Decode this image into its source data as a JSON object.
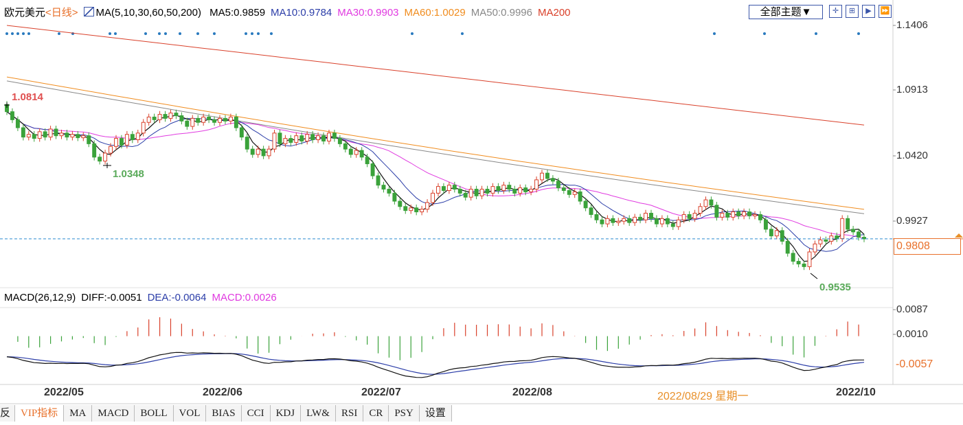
{
  "header": {
    "symbol": "欧元美元",
    "period": "<日线>",
    "ma_def": "MA(5,10,30,60,50,200)",
    "ma_values": [
      {
        "text": "MA5:0.9859",
        "color": "#000000"
      },
      {
        "text": "MA10:0.9784",
        "color": "#2b3da8"
      },
      {
        "text": "MA30:0.9903",
        "color": "#e03ae0"
      },
      {
        "text": "MA60:1.0029",
        "color": "#f08c1e"
      },
      {
        "text": "MA50:0.9996",
        "color": "#888888"
      },
      {
        "text": "MA200",
        "color": "#d9402a"
      }
    ],
    "theme_button": "全部主题▼"
  },
  "macd_header": {
    "def": "MACD(26,12,9)",
    "diff": "DIFF:-0.0051",
    "dea": "DEA:-0.0064",
    "macd": "MACD:0.0026",
    "colors": {
      "def": "#000000",
      "diff": "#000000",
      "dea": "#2b3da8",
      "macd": "#e03ae0"
    }
  },
  "price_axis": {
    "ticks": [
      "1.1406",
      "1.0913",
      "1.0420",
      "0.9927"
    ],
    "current": "0.9808"
  },
  "macd_axis": {
    "ticks": [
      "0.0087",
      "0.0010",
      "-0.0057"
    ]
  },
  "x_axis": {
    "labels": [
      "2022/05",
      "2022/06",
      "2022/07",
      "2022/08",
      "2022/10"
    ],
    "hover_date": "2022/08/29 星期一"
  },
  "annotations": {
    "high": "1.0814",
    "low1": "1.0348",
    "low2": "0.9535"
  },
  "tabs": [
    "反",
    "VIP指标",
    "MA",
    "MACD",
    "BOLL",
    "VOL",
    "BIAS",
    "CCI",
    "KDJ",
    "LW&",
    "RSI",
    "CR",
    "PSY",
    "设置"
  ],
  "active_tab": "VIP指标",
  "colors": {
    "up": "#d9402a",
    "down": "#3aa23a",
    "accent": "#e8702a"
  },
  "chart_data": {
    "type": "candlestick",
    "price_range": [
      0.9535,
      1.1406
    ],
    "candles": [
      {
        "o": 1.0814,
        "c": 1.076
      },
      {
        "o": 1.076,
        "c": 1.07
      },
      {
        "o": 1.07,
        "c": 1.064
      },
      {
        "o": 1.064,
        "c": 1.057
      },
      {
        "o": 1.057,
        "c": 1.059
      },
      {
        "o": 1.059,
        "c": 1.056
      },
      {
        "o": 1.056,
        "c": 1.061
      },
      {
        "o": 1.061,
        "c": 1.057
      },
      {
        "o": 1.057,
        "c": 1.063
      },
      {
        "o": 1.063,
        "c": 1.058
      },
      {
        "o": 1.058,
        "c": 1.06
      },
      {
        "o": 1.06,
        "c": 1.057
      },
      {
        "o": 1.057,
        "c": 1.059
      },
      {
        "o": 1.059,
        "c": 1.0565
      },
      {
        "o": 1.0565,
        "c": 1.058
      },
      {
        "o": 1.058,
        "c": 1.052
      },
      {
        "o": 1.052,
        "c": 1.042
      },
      {
        "o": 1.042,
        "c": 1.039
      },
      {
        "o": 1.039,
        "c": 1.045
      },
      {
        "o": 1.045,
        "c": 1.05
      },
      {
        "o": 1.05,
        "c": 1.056
      },
      {
        "o": 1.056,
        "c": 1.051
      },
      {
        "o": 1.051,
        "c": 1.059
      },
      {
        "o": 1.059,
        "c": 1.055
      },
      {
        "o": 1.055,
        "c": 1.06
      },
      {
        "o": 1.06,
        "c": 1.068
      },
      {
        "o": 1.068,
        "c": 1.072
      },
      {
        "o": 1.072,
        "c": 1.07
      },
      {
        "o": 1.07,
        "c": 1.074
      },
      {
        "o": 1.074,
        "c": 1.071
      },
      {
        "o": 1.071,
        "c": 1.075
      },
      {
        "o": 1.075,
        "c": 1.073
      },
      {
        "o": 1.073,
        "c": 1.069
      },
      {
        "o": 1.069,
        "c": 1.065
      },
      {
        "o": 1.065,
        "c": 1.071
      },
      {
        "o": 1.071,
        "c": 1.068
      },
      {
        "o": 1.068,
        "c": 1.072
      },
      {
        "o": 1.072,
        "c": 1.07
      },
      {
        "o": 1.07,
        "c": 1.068
      },
      {
        "o": 1.068,
        "c": 1.071
      },
      {
        "o": 1.071,
        "c": 1.069
      },
      {
        "o": 1.069,
        "c": 1.072
      },
      {
        "o": 1.072,
        "c": 1.064
      },
      {
        "o": 1.064,
        "c": 1.057
      },
      {
        "o": 1.057,
        "c": 1.048
      },
      {
        "o": 1.048,
        "c": 1.044
      },
      {
        "o": 1.044,
        "c": 1.048
      },
      {
        "o": 1.048,
        "c": 1.043
      },
      {
        "o": 1.043,
        "c": 1.048
      },
      {
        "o": 1.048,
        "c": 1.06
      },
      {
        "o": 1.06,
        "c": 1.052
      },
      {
        "o": 1.052,
        "c": 1.056
      },
      {
        "o": 1.056,
        "c": 1.053
      },
      {
        "o": 1.053,
        "c": 1.058
      },
      {
        "o": 1.058,
        "c": 1.054
      },
      {
        "o": 1.054,
        "c": 1.059
      },
      {
        "o": 1.059,
        "c": 1.055
      },
      {
        "o": 1.055,
        "c": 1.058
      },
      {
        "o": 1.058,
        "c": 1.054
      },
      {
        "o": 1.054,
        "c": 1.06
      },
      {
        "o": 1.06,
        "c": 1.056
      },
      {
        "o": 1.056,
        "c": 1.052
      },
      {
        "o": 1.052,
        "c": 1.048
      },
      {
        "o": 1.048,
        "c": 1.044
      },
      {
        "o": 1.044,
        "c": 1.047
      },
      {
        "o": 1.047,
        "c": 1.042
      },
      {
        "o": 1.042,
        "c": 1.037
      },
      {
        "o": 1.037,
        "c": 1.028
      },
      {
        "o": 1.028,
        "c": 1.021
      },
      {
        "o": 1.021,
        "c": 1.018
      },
      {
        "o": 1.018,
        "c": 1.015
      },
      {
        "o": 1.015,
        "c": 1.009
      },
      {
        "o": 1.009,
        "c": 1.005
      },
      {
        "o": 1.005,
        "c": 1.002
      },
      {
        "o": 1.002,
        "c": 1.004
      },
      {
        "o": 1.004,
        "c": 1.001
      },
      {
        "o": 1.001,
        "c": 1.003
      },
      {
        "o": 1.003,
        "c": 1.008
      },
      {
        "o": 1.008,
        "c": 1.015
      },
      {
        "o": 1.015,
        "c": 1.02
      },
      {
        "o": 1.02,
        "c": 1.017
      },
      {
        "o": 1.017,
        "c": 1.021
      },
      {
        "o": 1.021,
        "c": 1.018
      },
      {
        "o": 1.018,
        "c": 1.015
      },
      {
        "o": 1.015,
        "c": 1.012
      },
      {
        "o": 1.012,
        "c": 1.018
      },
      {
        "o": 1.018,
        "c": 1.013
      },
      {
        "o": 1.013,
        "c": 1.018
      },
      {
        "o": 1.018,
        "c": 1.015
      },
      {
        "o": 1.015,
        "c": 1.02
      },
      {
        "o": 1.02,
        "c": 1.017
      },
      {
        "o": 1.017,
        "c": 1.021
      },
      {
        "o": 1.021,
        "c": 1.018
      },
      {
        "o": 1.018,
        "c": 1.015
      },
      {
        "o": 1.015,
        "c": 1.019
      },
      {
        "o": 1.019,
        "c": 1.016
      },
      {
        "o": 1.016,
        "c": 1.018
      },
      {
        "o": 1.018,
        "c": 1.025
      },
      {
        "o": 1.025,
        "c": 1.03
      },
      {
        "o": 1.03,
        "c": 1.026
      },
      {
        "o": 1.026,
        "c": 1.024
      },
      {
        "o": 1.024,
        "c": 1.019
      },
      {
        "o": 1.019,
        "c": 1.017
      },
      {
        "o": 1.017,
        "c": 1.014
      },
      {
        "o": 1.014,
        "c": 1.016
      },
      {
        "o": 1.016,
        "c": 1.009
      },
      {
        "o": 1.009,
        "c": 1.004
      },
      {
        "o": 1.004,
        "c": 0.999
      },
      {
        "o": 0.999,
        "c": 0.995
      },
      {
        "o": 0.995,
        "c": 0.992
      },
      {
        "o": 0.992,
        "c": 0.996
      },
      {
        "o": 0.996,
        "c": 0.993
      },
      {
        "o": 0.993,
        "c": 0.994
      },
      {
        "o": 0.994,
        "c": 0.996
      },
      {
        "o": 0.996,
        "c": 0.993
      },
      {
        "o": 0.993,
        "c": 0.997
      },
      {
        "o": 0.997,
        "c": 0.995
      },
      {
        "o": 0.995,
        "c": 1.0
      },
      {
        "o": 1.0,
        "c": 0.996
      },
      {
        "o": 0.996,
        "c": 0.992
      },
      {
        "o": 0.992,
        "c": 0.996
      },
      {
        "o": 0.996,
        "c": 0.992
      },
      {
        "o": 0.992,
        "c": 0.99
      },
      {
        "o": 0.99,
        "c": 0.995
      },
      {
        "o": 0.995,
        "c": 0.999
      },
      {
        "o": 0.999,
        "c": 0.996
      },
      {
        "o": 0.996,
        "c": 1.0
      },
      {
        "o": 1.0,
        "c": 1.005
      },
      {
        "o": 1.005,
        "c": 1.01
      },
      {
        "o": 1.01,
        "c": 1.006
      },
      {
        "o": 1.006,
        "c": 0.997
      },
      {
        "o": 0.997,
        "c": 1.0
      },
      {
        "o": 1.0,
        "c": 0.997
      },
      {
        "o": 0.997,
        "c": 1.001
      },
      {
        "o": 1.001,
        "c": 0.998
      },
      {
        "o": 0.998,
        "c": 1.001
      },
      {
        "o": 1.001,
        "c": 0.998
      },
      {
        "o": 0.998,
        "c": 0.999
      },
      {
        "o": 0.999,
        "c": 0.995
      },
      {
        "o": 0.995,
        "c": 0.988
      },
      {
        "o": 0.988,
        "c": 0.983
      },
      {
        "o": 0.983,
        "c": 0.987
      },
      {
        "o": 0.987,
        "c": 0.979
      },
      {
        "o": 0.979,
        "c": 0.97
      },
      {
        "o": 0.97,
        "c": 0.964
      },
      {
        "o": 0.964,
        "c": 0.962
      },
      {
        "o": 0.962,
        "c": 0.96
      },
      {
        "o": 0.96,
        "c": 0.971
      },
      {
        "o": 0.971,
        "c": 0.977
      },
      {
        "o": 0.977,
        "c": 0.98
      },
      {
        "o": 0.98,
        "c": 0.979
      },
      {
        "o": 0.979,
        "c": 0.983
      },
      {
        "o": 0.983,
        "c": 0.981
      },
      {
        "o": 0.981,
        "c": 0.996
      },
      {
        "o": 0.996,
        "c": 0.988
      },
      {
        "o": 0.988,
        "c": 0.986
      },
      {
        "o": 0.986,
        "c": 0.982
      },
      {
        "o": 0.982,
        "c": 0.9808
      }
    ],
    "ma200": [
      1.1406,
      1.066
    ],
    "ma_long_grey": [
      1.099,
      0.9996
    ],
    "ma_long_orange": [
      1.102,
      1.0029
    ],
    "macd_range": [
      -0.014,
      0.0087
    ]
  }
}
